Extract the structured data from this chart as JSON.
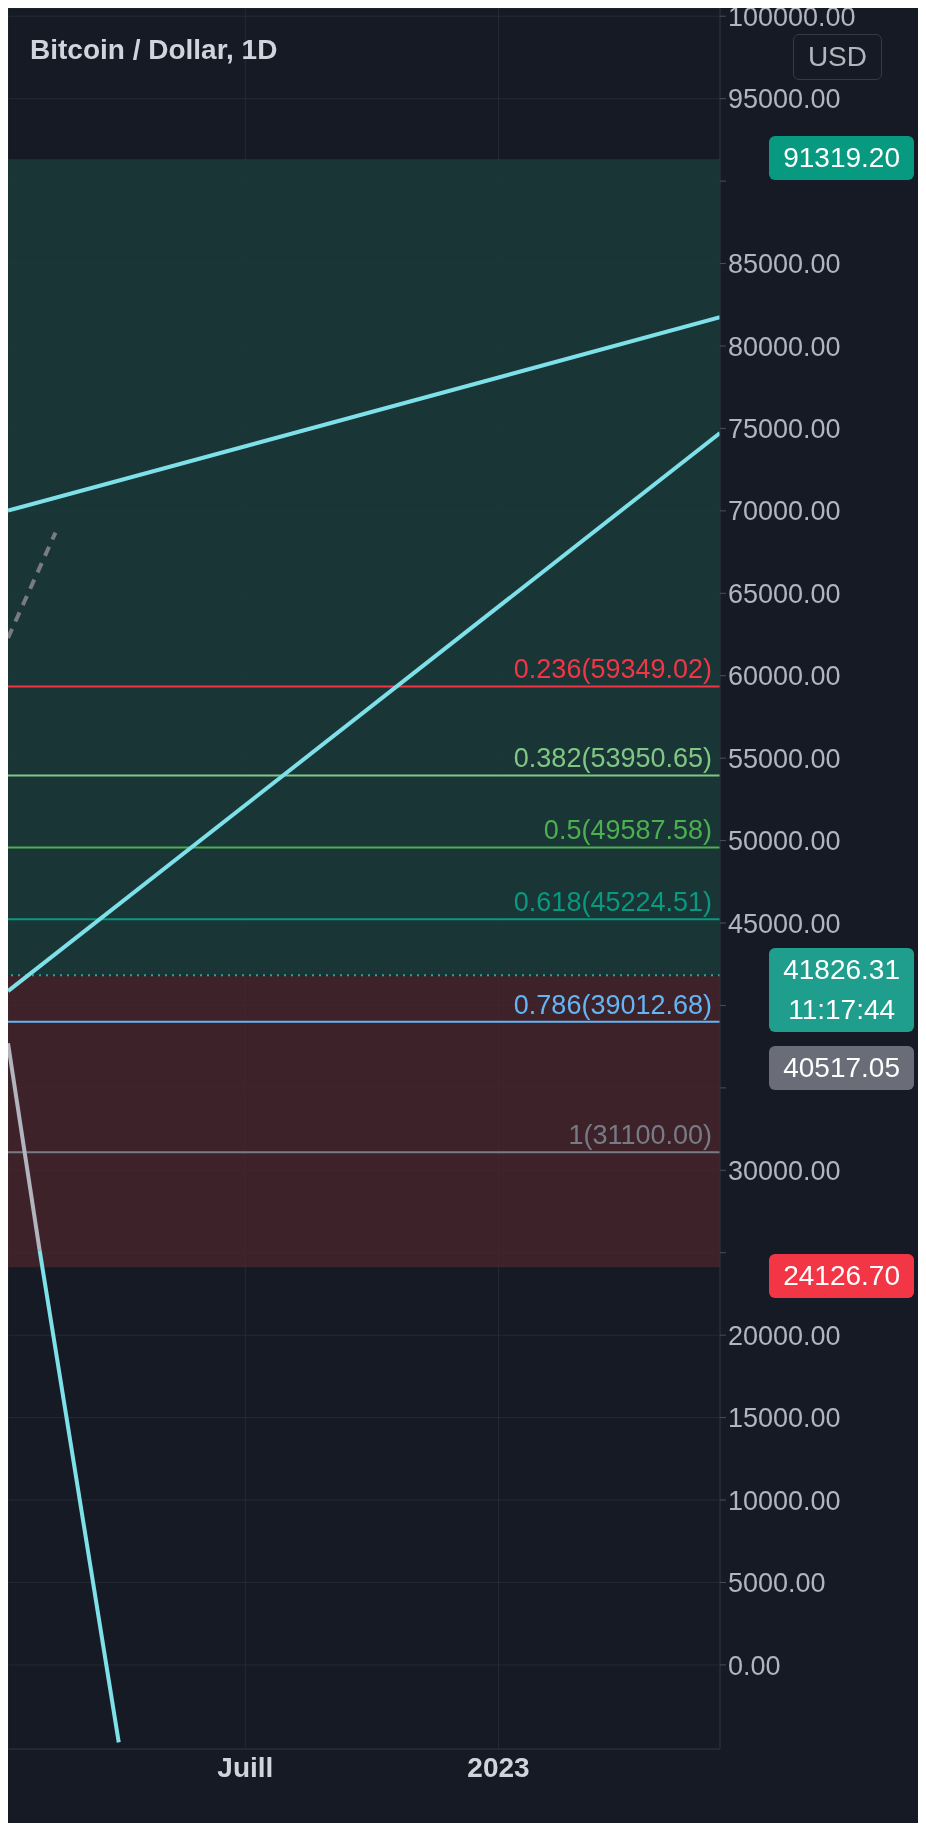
{
  "chart_data": {
    "type": "line",
    "title": "Bitcoin / Dollar, 1D",
    "categories": [
      null,
      null,
      null,
      null,
      null,
      null,
      null,
      null,
      null,
      null,
      null,
      null,
      null,
      null,
      null,
      "Juill",
      null,
      null,
      null,
      null,
      null,
      null,
      null,
      null,
      null,
      null,
      null,
      null,
      null,
      null,
      null,
      "2023",
      null,
      null,
      null,
      null,
      null,
      null,
      null,
      null,
      null,
      null,
      null,
      null,
      null,
      null
    ],
    "ylim": [
      -5100,
      100500
    ],
    "yticks": [
      {
        "value": 0,
        "label": "0.00"
      },
      {
        "value": 5000,
        "label": "5000.00"
      },
      {
        "value": 10000,
        "label": "10000.00"
      },
      {
        "value": 15000,
        "label": "15000.00"
      },
      {
        "value": 20000,
        "label": "20000.00"
      },
      {
        "value": 25000,
        "label": null
      },
      {
        "value": 30000,
        "label": "30000.00"
      },
      {
        "value": 35000,
        "label": null
      },
      {
        "value": 40000,
        "label": null
      },
      {
        "value": 45000,
        "label": "45000.00"
      },
      {
        "value": 50000,
        "label": "50000.00"
      },
      {
        "value": 55000,
        "label": "55000.00"
      },
      {
        "value": 60000,
        "label": "60000.00"
      },
      {
        "value": 65000,
        "label": "65000.00"
      },
      {
        "value": 70000,
        "label": "70000.00"
      },
      {
        "value": 75000,
        "label": "75000.00"
      },
      {
        "value": 80000,
        "label": "80000.00"
      },
      {
        "value": 85000,
        "label": "85000.00"
      },
      {
        "value": 90000,
        "label": null
      },
      {
        "value": 95000,
        "label": "95000.00"
      },
      {
        "value": 100000,
        "label": "100000.00"
      }
    ],
    "grid": true,
    "marker": "none",
    "series": [
      {
        "color": "#7ee0e8",
        "values": [
          70010,
          null,
          null,
          null,
          null,
          null,
          null,
          null,
          null,
          null,
          null,
          null,
          null,
          null,
          null,
          null,
          null,
          null,
          null,
          null,
          null,
          null,
          null,
          null,
          null,
          null,
          null,
          null,
          null,
          null,
          null,
          null,
          null,
          null,
          null,
          null,
          null,
          null,
          null,
          null,
          null,
          null,
          null,
          null,
          null,
          81740
        ]
      },
      {
        "color": "#7ee0e8",
        "values": [
          40870,
          null,
          null,
          null,
          null,
          null,
          null,
          null,
          null,
          null,
          null,
          null,
          null,
          null,
          null,
          null,
          null,
          null,
          null,
          null,
          null,
          null,
          null,
          null,
          null,
          null,
          null,
          null,
          null,
          null,
          null,
          null,
          null,
          null,
          null,
          null,
          null,
          null,
          null,
          null,
          null,
          null,
          null,
          null,
          null,
          74720
        ]
      },
      {
        "color": "#b2b5be",
        "values": [
          37710,
          null,
          25140,
          null,
          null,
          null,
          null,
          null,
          null,
          null,
          null,
          null,
          null,
          null,
          null,
          null,
          null,
          null,
          null,
          null,
          null,
          null,
          null,
          null,
          null,
          null,
          null,
          null,
          null,
          null,
          null,
          null,
          null,
          null,
          null,
          null,
          null,
          null,
          null,
          null,
          null,
          null,
          null,
          null,
          null,
          null
        ]
      },
      {
        "color": "#7ee0e8",
        "values": [
          null,
          null,
          25140,
          null,
          null,
          null,
          null,
          -4700,
          null,
          null,
          null,
          null,
          null,
          null,
          null,
          null,
          null,
          null,
          null,
          null,
          null,
          null,
          null,
          null,
          null,
          null,
          null,
          null,
          null,
          null,
          null,
          null,
          null,
          null,
          null,
          null,
          null,
          null,
          null,
          null,
          null,
          null,
          null,
          null,
          null,
          null
        ]
      },
      {
        "color": "#787b86",
        "line_style": "dashed",
        "values": [
          62290,
          null,
          null,
          68680,
          null,
          null,
          null,
          null,
          null,
          null,
          null,
          null,
          null,
          null,
          null,
          null,
          null,
          null,
          null,
          null,
          null,
          null,
          null,
          null,
          null,
          null,
          null,
          null,
          null,
          null,
          null,
          null,
          null,
          null,
          null,
          null,
          null,
          null,
          null,
          null,
          null,
          null,
          null,
          null,
          null,
          null
        ]
      }
    ],
    "bands": [
      {
        "axis": "y",
        "from": 41826.31,
        "to": 91319.2,
        "color": "#1a3b3a"
      },
      {
        "axis": "y",
        "from": 24126.7,
        "to": 41826.31,
        "color": "#45252b"
      }
    ],
    "ref_lines": [
      {
        "axis": "y",
        "value": 59349.02,
        "label": "0.236(59349.02)",
        "color": "#f23645"
      },
      {
        "axis": "y",
        "value": 53950.65,
        "label": "0.382(53950.65)",
        "color": "#81c784"
      },
      {
        "axis": "y",
        "value": 49587.58,
        "label": "0.5(49587.58)",
        "color": "#4caf50"
      },
      {
        "axis": "y",
        "value": 45224.51,
        "label": "0.618(45224.51)",
        "color": "#089981"
      },
      {
        "axis": "y",
        "value": 41826.31,
        "label": null,
        "color": "#26a69a",
        "line_style": "dotted"
      },
      {
        "axis": "y",
        "value": 39012.68,
        "label": "0.786(39012.68)",
        "color": "#64b5f6"
      },
      {
        "axis": "y",
        "value": 31100,
        "label": "1(31100.00)",
        "color": "#787b86"
      }
    ],
    "annotations": [
      "USD",
      "91319.20",
      "41826.31\n11:17:44",
      "40517.05",
      "24126.70"
    ]
  }
}
